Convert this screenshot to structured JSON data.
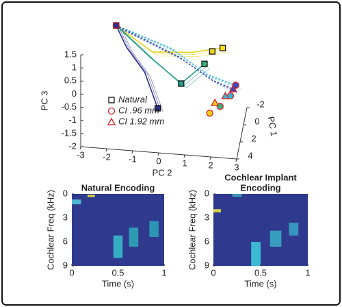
{
  "chart_data": [
    {
      "type": "scatter3d",
      "xlabel": "PC 2",
      "ylabel": "PC 1",
      "zlabel": "PC 3",
      "xlim": [
        -3,
        3
      ],
      "ylim": [
        -2,
        4
      ],
      "zlim": [
        -2,
        1.5
      ],
      "xticks": [
        -3,
        -2,
        -1,
        0,
        1,
        2,
        3
      ],
      "yticks": [
        -2,
        0,
        2,
        4
      ],
      "zticks": [
        -2,
        -1.5,
        -1,
        -0.5,
        0,
        0.5,
        1,
        1.5
      ],
      "trajectories": [
        {
          "color": "#2b2e8c",
          "x": [
            -1.9,
            -1.5,
            -0.8,
            -0.3
          ],
          "y": [
            0,
            0,
            0,
            0
          ],
          "z": [
            1.4,
            0.6,
            -0.3,
            -1.63
          ]
        },
        {
          "color": "#e6d21c",
          "x": [
            -1.9,
            -0.5,
            1.0,
            2.2
          ],
          "y": [
            0,
            0,
            0,
            0
          ],
          "z": [
            1.4,
            0.5,
            0.6,
            0.86
          ]
        },
        {
          "color": "#1f9e89",
          "x": [
            -1.9,
            -0.6,
            0.6,
            1.5
          ],
          "y": [
            0,
            0,
            0,
            0
          ],
          "z": [
            1.4,
            0.3,
            -0.62,
            0.2
          ]
        },
        {
          "color": "#35b7d6",
          "x": [
            -1.9,
            0.2,
            1.6,
            2.7
          ],
          "y": [
            0,
            0,
            0,
            0
          ],
          "z": [
            1.4,
            0.7,
            -0.2,
            -0.52
          ]
        },
        {
          "color": "#3b4cc0",
          "x": [
            -1.9,
            0.5,
            1.8,
            2.6
          ],
          "y": [
            0,
            0,
            0,
            0
          ],
          "z": [
            1.4,
            0.4,
            -0.4,
            -0.67
          ]
        }
      ],
      "series": [
        {
          "name": "Natural",
          "marker": "square",
          "color": "#111111",
          "fills": [
            "#2b2e8c",
            "#2b2e8c",
            "#1f9e89",
            "#3ab37a",
            "#e6d21c",
            "#f2e318"
          ],
          "x": [
            -1.9,
            -0.3,
            0.6,
            1.5,
            1.8,
            2.2
          ],
          "y": [
            0,
            0,
            0,
            0,
            0,
            0
          ],
          "z": [
            1.4,
            -1.63,
            -0.62,
            0.2,
            0.7,
            0.86
          ]
        },
        {
          "name": "CI .96 mm",
          "marker": "circle",
          "color": "#d62020",
          "fills": [
            "#2b2e8c",
            "#f2d21c",
            "#3ab37a",
            "#35b7d6",
            "#3b4cc0"
          ],
          "x": [
            -1.9,
            1.7,
            2.1,
            2.5,
            2.7
          ],
          "y": [
            0,
            0,
            0,
            0,
            0
          ],
          "z": [
            1.4,
            -1.66,
            -1.37,
            -0.94,
            -0.52
          ]
        },
        {
          "name": "CI 1.92 mm",
          "marker": "triangle",
          "color": "#d62020",
          "fills": [
            "#f2d21c",
            "#35b7d6",
            "#3b4cc0"
          ],
          "x": [
            1.9,
            2.3,
            2.6
          ],
          "y": [
            0,
            0,
            0
          ],
          "z": [
            -1.25,
            -0.96,
            -0.67
          ]
        }
      ]
    },
    {
      "type": "spectrogram",
      "title": [
        "Natural Encoding"
      ],
      "xlabel": "Time (s)",
      "ylabel": "Cochlear Freq (kHz)",
      "background": "#2f3a8f",
      "xlim": [
        0,
        1
      ],
      "ylim": [
        0,
        9
      ],
      "xticks": [
        0,
        0.5,
        1
      ],
      "yticks": [
        0,
        3,
        6,
        9
      ],
      "bursts": [
        {
          "t": [
            0,
            0.1
          ],
          "f": [
            0.7,
            1.3
          ],
          "color": "#4fc6d8"
        },
        {
          "t": [
            0.17,
            0.25
          ],
          "f": [
            0.1,
            0.4
          ],
          "color": "#e8e23a"
        },
        {
          "t": [
            0.45,
            0.55
          ],
          "f": [
            5.2,
            8
          ],
          "color": "#37b9c9"
        },
        {
          "t": [
            0.62,
            0.72
          ],
          "f": [
            4.2,
            6.6
          ],
          "color": "#2ea5b5"
        },
        {
          "t": [
            0.84,
            0.94
          ],
          "f": [
            3.4,
            5.4
          ],
          "color": "#2e9fb8"
        }
      ]
    },
    {
      "type": "spectrogram",
      "title": [
        "Cochlear Implant",
        "Encoding"
      ],
      "xlabel": "Time (s)",
      "ylabel": "Cochlear Freq (kHz)",
      "background": "#2f3a8f",
      "xlim": [
        0,
        1
      ],
      "ylim": [
        0,
        9
      ],
      "xticks": [
        0,
        0.5,
        1
      ],
      "yticks": [
        0,
        3,
        6,
        9
      ],
      "bursts": [
        {
          "t": [
            0,
            0.08
          ],
          "f": [
            1.9,
            2.3
          ],
          "color": "#e8e23a"
        },
        {
          "t": [
            0.2,
            0.3
          ],
          "f": [
            0,
            0.35
          ],
          "color": "#3fa3c0"
        },
        {
          "t": [
            0.4,
            0.5
          ],
          "f": [
            6,
            9
          ],
          "color": "#3ec7d8"
        },
        {
          "t": [
            0.6,
            0.72
          ],
          "f": [
            4.6,
            6.6
          ],
          "color": "#3aa7c2"
        },
        {
          "t": [
            0.8,
            0.9
          ],
          "f": [
            3.6,
            5.2
          ],
          "color": "#3aa0c4"
        }
      ]
    }
  ]
}
